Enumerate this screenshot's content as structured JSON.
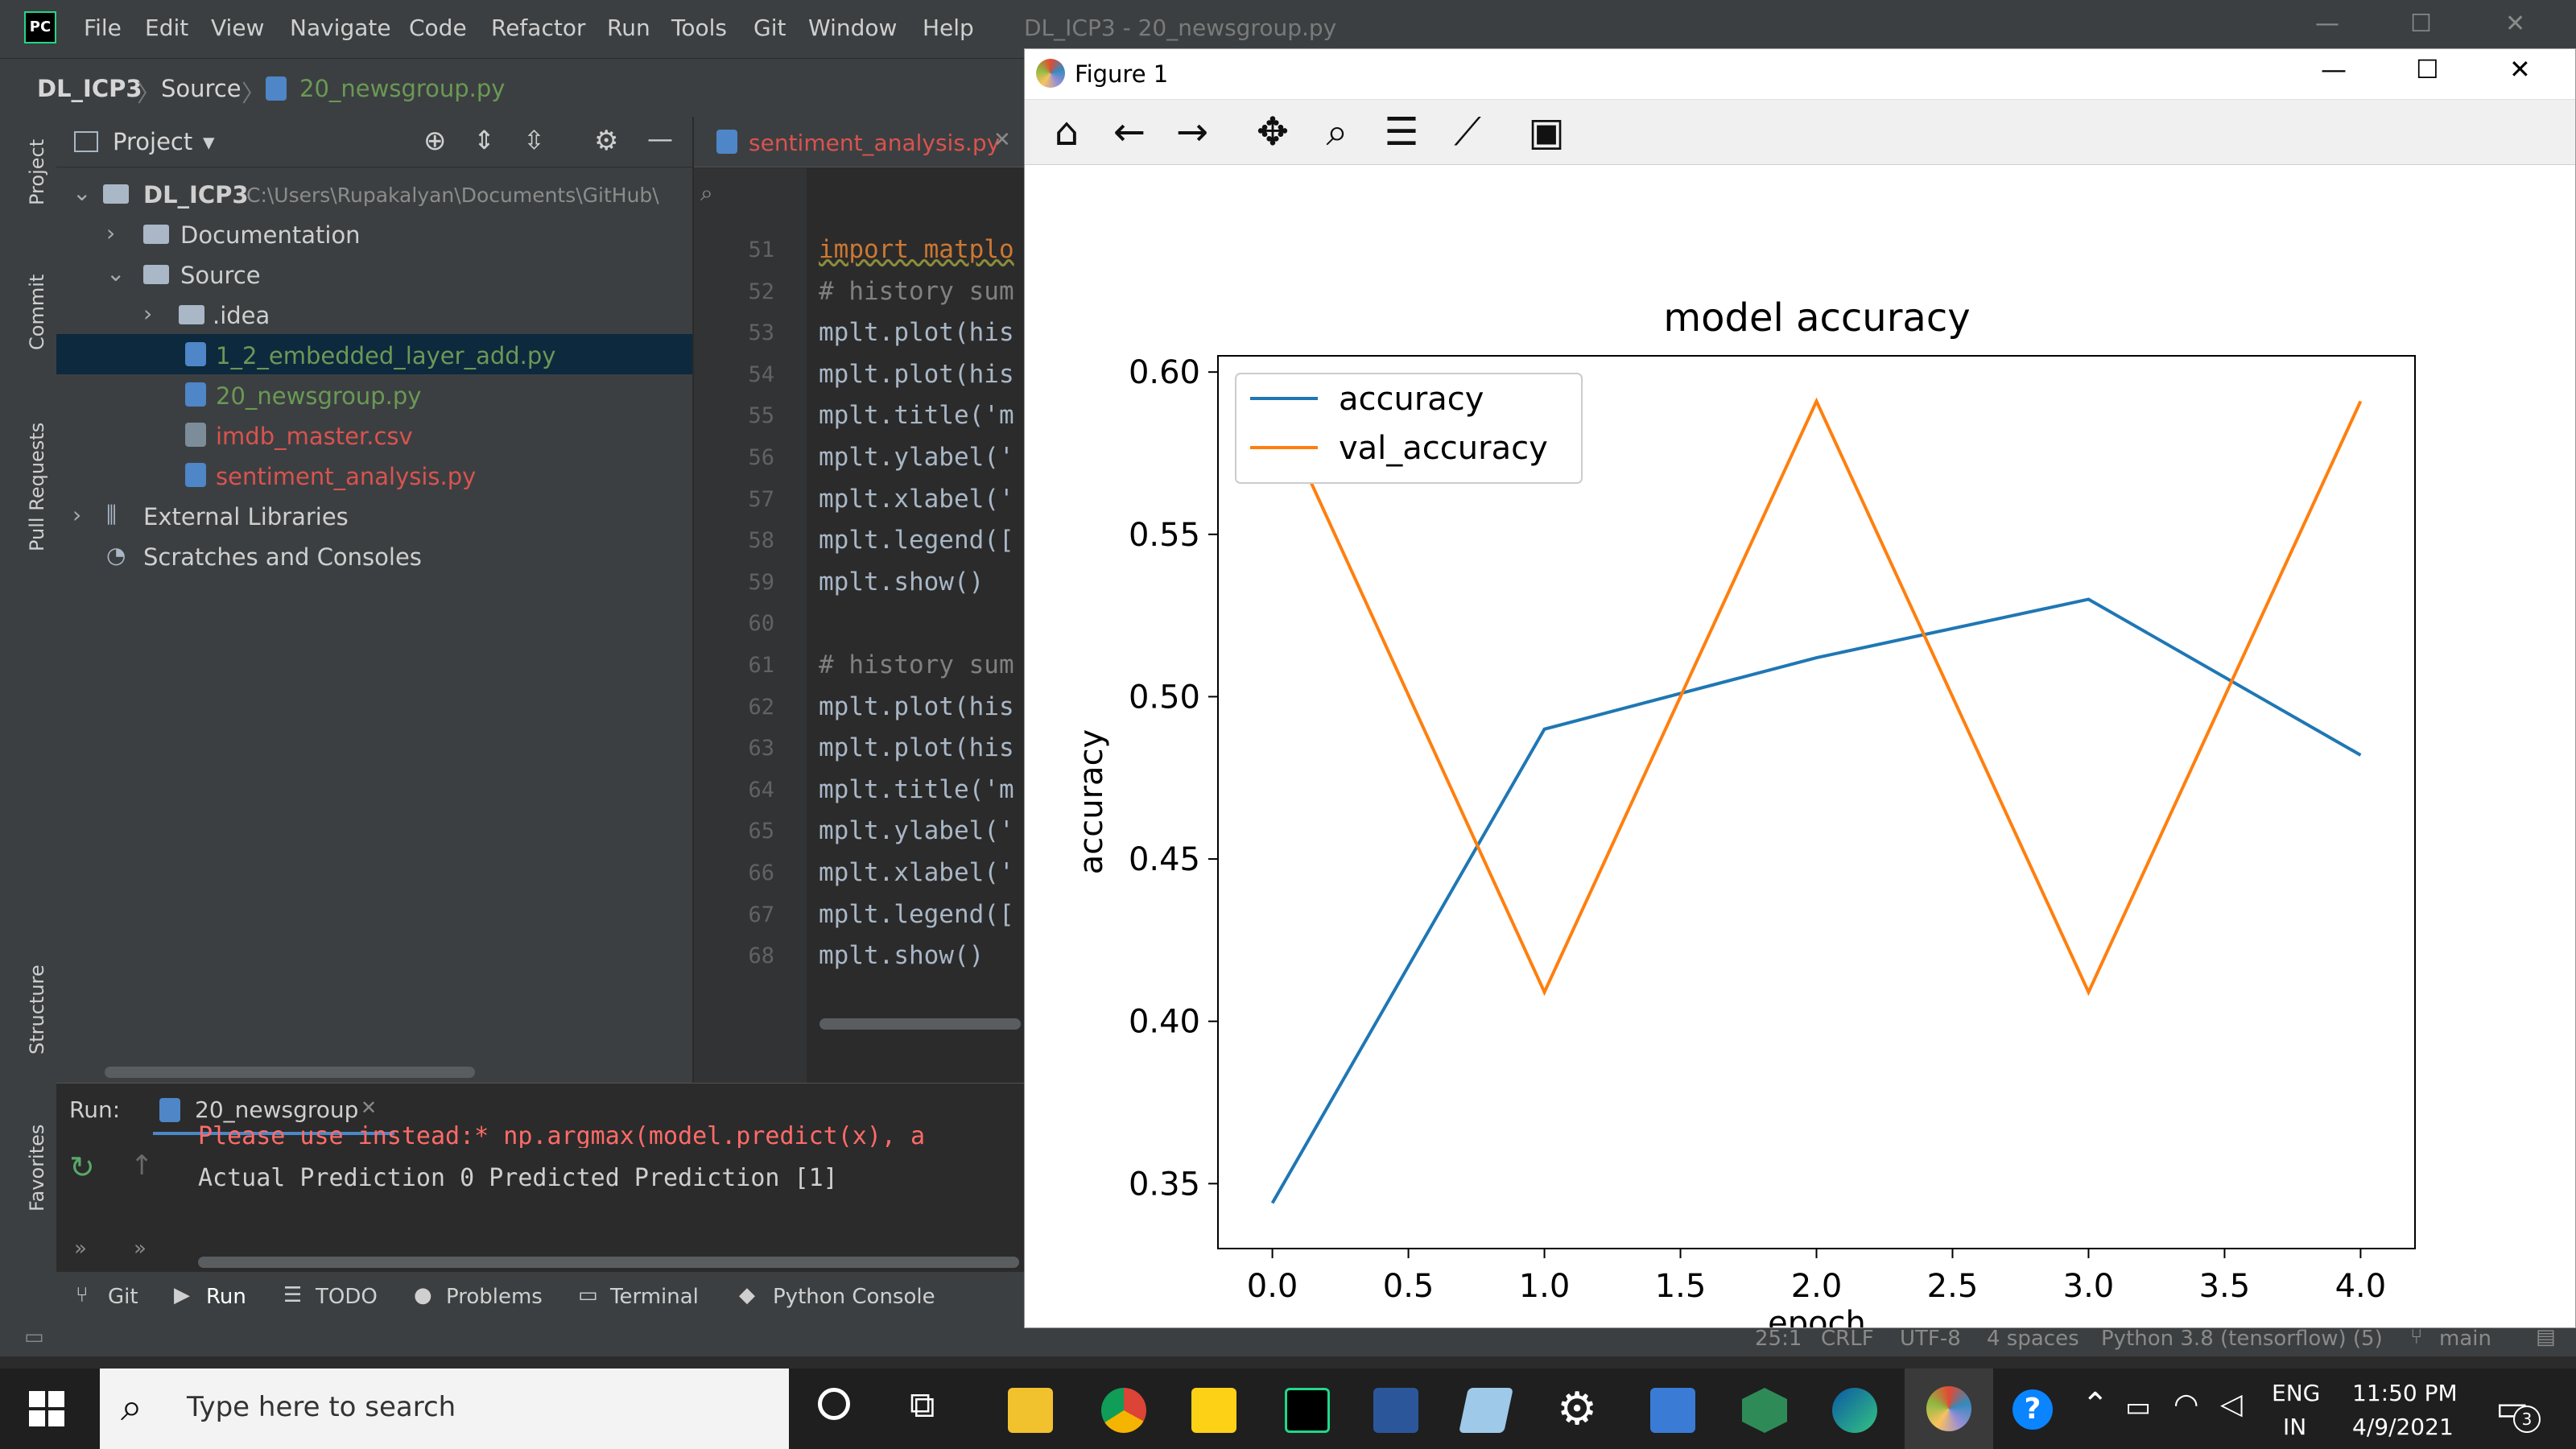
{
  "ide": {
    "menu": [
      "File",
      "Edit",
      "View",
      "Navigate",
      "Code",
      "Refactor",
      "Run",
      "Tools",
      "Git",
      "Window",
      "Help"
    ],
    "window_title": "DL_ICP3 - 20_newsgroup.py",
    "breadcrumb": [
      "DL_ICP3",
      "Source",
      "20_newsgroup.py"
    ],
    "project_header": "Project",
    "tree": [
      {
        "label": "DL_ICP3",
        "path": "C:\\Users\\Rupakalyan\\Documents\\GitHub\\",
        "type": "folder",
        "color": "#cfcfcf"
      },
      {
        "label": "Documentation",
        "type": "folder",
        "color": "#cfcfcf"
      },
      {
        "label": "Source",
        "type": "folder",
        "color": "#cfcfcf"
      },
      {
        "label": ".idea",
        "type": "folder",
        "color": "#cfcfcf"
      },
      {
        "label": "1_2_embedded_layer_add.py",
        "type": "py",
        "color": "#6a9955"
      },
      {
        "label": "20_newsgroup.py",
        "type": "py",
        "color": "#6a9955"
      },
      {
        "label": "imdb_master.csv",
        "type": "csv",
        "color": "#d9534f"
      },
      {
        "label": "sentiment_analysis.py",
        "type": "py",
        "color": "#d9534f"
      },
      {
        "label": "External Libraries",
        "type": "lib",
        "color": "#cfcfcf"
      },
      {
        "label": "Scratches and Consoles",
        "type": "scratch",
        "color": "#cfcfcf"
      }
    ],
    "editor_tab": "sentiment_analysis.py",
    "code_lines": [
      {
        "n": "51",
        "text": "import matplo",
        "kind": "kw"
      },
      {
        "n": "52",
        "text": "# history sum",
        "kind": "cmt"
      },
      {
        "n": "53",
        "text": "mplt.plot(his",
        "kind": "code"
      },
      {
        "n": "54",
        "text": "mplt.plot(his",
        "kind": "code"
      },
      {
        "n": "55",
        "text": "mplt.title('m",
        "kind": "code"
      },
      {
        "n": "56",
        "text": "mplt.ylabel('",
        "kind": "code"
      },
      {
        "n": "57",
        "text": "mplt.xlabel('",
        "kind": "code"
      },
      {
        "n": "58",
        "text": "mplt.legend([",
        "kind": "code"
      },
      {
        "n": "59",
        "text": "mplt.show()",
        "kind": "code"
      },
      {
        "n": "60",
        "text": "",
        "kind": "code"
      },
      {
        "n": "61",
        "text": "# history sum",
        "kind": "cmt"
      },
      {
        "n": "62",
        "text": "mplt.plot(his",
        "kind": "code"
      },
      {
        "n": "63",
        "text": "mplt.plot(his",
        "kind": "code"
      },
      {
        "n": "64",
        "text": "mplt.title('m",
        "kind": "code"
      },
      {
        "n": "65",
        "text": "mplt.ylabel('",
        "kind": "code"
      },
      {
        "n": "66",
        "text": "mplt.xlabel('",
        "kind": "code"
      },
      {
        "n": "67",
        "text": "mplt.legend([",
        "kind": "code"
      },
      {
        "n": "68",
        "text": "mplt.show()",
        "kind": "code"
      }
    ],
    "run_label": "Run:",
    "run_tab": "20_newsgroup",
    "run_output_partial": "Please use instead:* np.argmax(model.predict(x), a",
    "run_output": "Actual Prediction 0 Predicted Prediction [1]",
    "side_labels": [
      "Project",
      "Commit",
      "Pull Requests",
      "Structure",
      "Favorites"
    ],
    "bottom_tools": [
      "Git",
      "Run",
      "TODO",
      "Problems",
      "Terminal",
      "Python Console"
    ],
    "status_items": [
      "25:1",
      "CRLF",
      "UTF-8",
      "4 spaces",
      "Python 3.8 (tensorflow) (5)",
      "main"
    ]
  },
  "figure": {
    "window_title": "Figure 1",
    "toolbar_icons": [
      "home-icon",
      "back-arrow-icon",
      "forward-arrow-icon",
      "pan-icon",
      "zoom-icon",
      "configure-icon",
      "edit-axis-icon",
      "save-icon"
    ]
  },
  "chart_data": {
    "type": "line",
    "title": "model accuracy",
    "xlabel": "epoch",
    "ylabel": "accuracy",
    "xlim": [
      -0.2,
      4.2
    ],
    "ylim": [
      0.33,
      0.605
    ],
    "xticks": [
      "0.0",
      "0.5",
      "1.0",
      "1.5",
      "2.0",
      "2.5",
      "3.0",
      "3.5",
      "4.0"
    ],
    "yticks": [
      "0.35",
      "0.40",
      "0.45",
      "0.50",
      "0.55",
      "0.60"
    ],
    "legend_position": "upper-left",
    "x": [
      0,
      1,
      2,
      3,
      4
    ],
    "series": [
      {
        "name": "accuracy",
        "color": "#1f77b4",
        "values": [
          0.344,
          0.49,
          0.512,
          0.53,
          0.482
        ]
      },
      {
        "name": "val_accuracy",
        "color": "#ff7f0e",
        "values": [
          0.592,
          0.409,
          0.591,
          0.409,
          0.591
        ]
      }
    ]
  },
  "taskbar": {
    "search_placeholder": "Type here to search",
    "lang_top": "ENG",
    "lang_bottom": "IN",
    "time": "11:50 PM",
    "date": "4/9/2021",
    "notification_count": "3"
  }
}
